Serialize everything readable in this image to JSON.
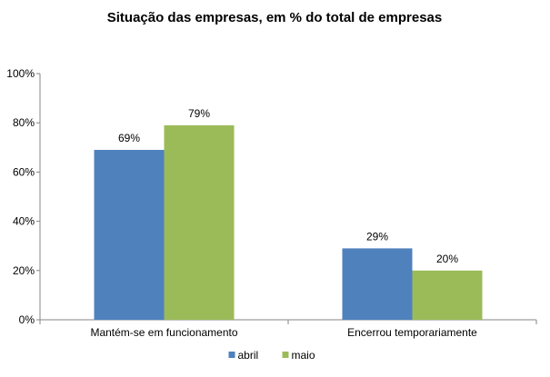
{
  "chart_data": {
    "type": "bar",
    "title": "Situação das empresas, em % do total de empresas",
    "categories": [
      "Mantém-se em funcionamento",
      "Encerrou temporariamente"
    ],
    "series": [
      {
        "name": "abril",
        "values": [
          69,
          29
        ],
        "labels": [
          "69%",
          "29%"
        ],
        "color": "#4F81BD"
      },
      {
        "name": "maio",
        "values": [
          79,
          20
        ],
        "labels": [
          "79%",
          "20%"
        ],
        "color": "#9BBB59"
      }
    ],
    "ylim": [
      0,
      100
    ],
    "yticks": [
      0,
      20,
      40,
      60,
      80,
      100
    ],
    "ytick_labels": [
      "0%",
      "20%",
      "40%",
      "60%",
      "80%",
      "100%"
    ],
    "grid": false,
    "legend_position": "bottom"
  }
}
